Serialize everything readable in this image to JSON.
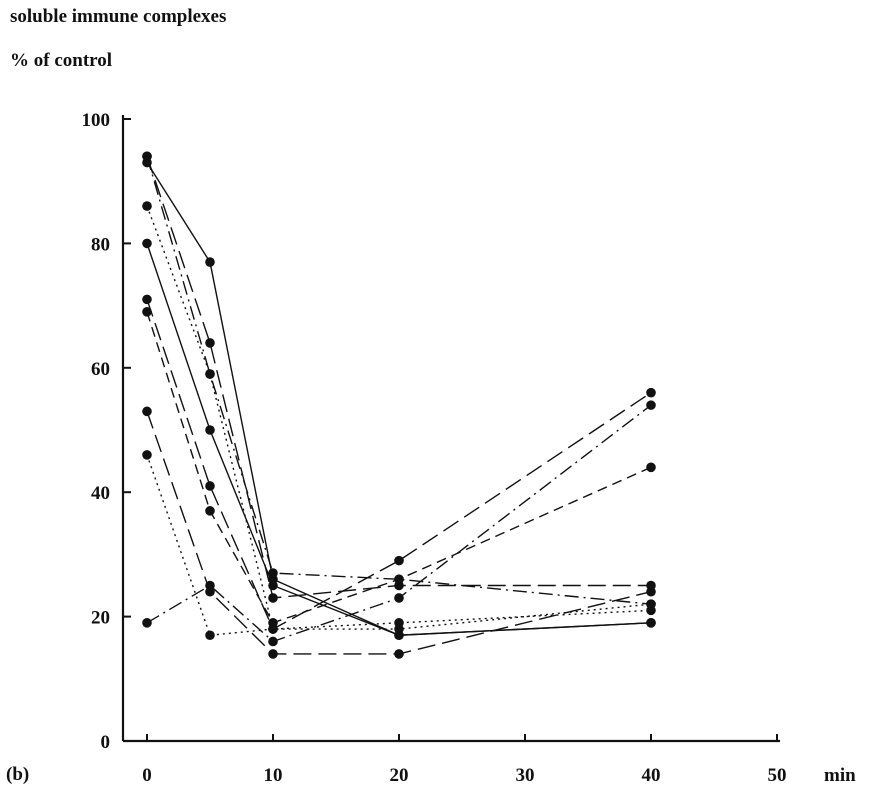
{
  "chart_data": {
    "type": "line",
    "ylabel_line1": "soluble immune complexes",
    "ylabel_line2": "% of control",
    "xlabel": "min",
    "panel_label": "(b)",
    "xlim": [
      0,
      50
    ],
    "ylim": [
      0,
      100
    ],
    "x_ticks": [
      "0",
      "10",
      "20",
      "30",
      "40",
      "50"
    ],
    "y_ticks": [
      "0",
      "20",
      "40",
      "60",
      "80",
      "100"
    ],
    "x": [
      0,
      5,
      10,
      20,
      40
    ],
    "series": [
      {
        "style": "solid",
        "values": [
          93,
          77,
          26,
          17,
          19
        ]
      },
      {
        "style": "long-dash",
        "values": [
          94,
          64,
          23,
          25,
          25
        ]
      },
      {
        "style": "dotted",
        "values": [
          86,
          59,
          18,
          19,
          21
        ]
      },
      {
        "style": "solid",
        "values": [
          80,
          50,
          25,
          17,
          19
        ]
      },
      {
        "style": "long-dash",
        "values": [
          71,
          41,
          18,
          29,
          56
        ]
      },
      {
        "style": "dashed",
        "values": [
          69,
          37,
          19,
          26,
          44
        ]
      },
      {
        "style": "long-dash",
        "values": [
          53,
          24,
          14,
          14,
          24
        ]
      },
      {
        "style": "dotted",
        "values": [
          46,
          17,
          18,
          18,
          22
        ]
      },
      {
        "style": "dash-dot",
        "values": [
          19,
          25,
          16,
          23,
          54
        ]
      },
      {
        "style": "dash-dot",
        "values": [
          94,
          59,
          27,
          26,
          22
        ]
      }
    ]
  }
}
